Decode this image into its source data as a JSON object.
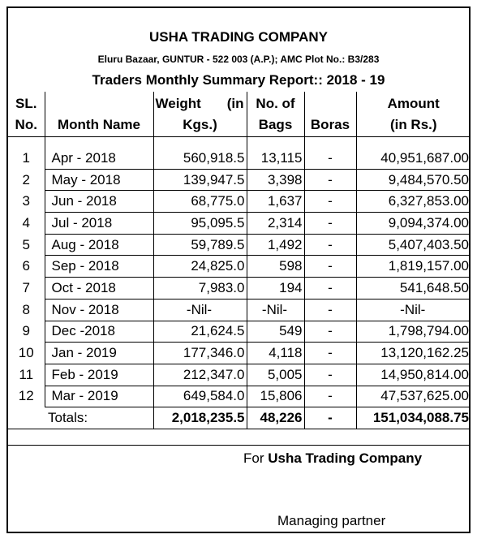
{
  "header": {
    "company": "USHA TRADING COMPANY",
    "address": "Eluru Bazaar, GUNTUR - 522 003 (A.P.); AMC Plot No.: B3/283",
    "report_title": "Traders Monthly Summary Report:: 2018 - 19"
  },
  "columns": {
    "sl_line1": "SL.",
    "sl_line2": "No.",
    "month": "Month Name",
    "weight_line1": "Weight",
    "weight_unit_left": "(in",
    "weight_line2": "Kgs.)",
    "bags_line1": "No. of",
    "bags_line2": "Bags",
    "boras": "Boras",
    "amount_line1": "Amount",
    "amount_line2": "(in Rs.)"
  },
  "rows": [
    {
      "sl": "1",
      "month": "Apr - 2018",
      "weight": "560,918.5",
      "bags": "13,115",
      "boras": "-",
      "amount": "40,951,687.00"
    },
    {
      "sl": "2",
      "month": "May - 2018",
      "weight": "139,947.5",
      "bags": "3,398",
      "boras": "-",
      "amount": "9,484,570.50"
    },
    {
      "sl": "3",
      "month": "Jun - 2018",
      "weight": "68,775.0",
      "bags": "1,637",
      "boras": "-",
      "amount": "6,327,853.00"
    },
    {
      "sl": "4",
      "month": "Jul - 2018",
      "weight": "95,095.5",
      "bags": "2,314",
      "boras": "-",
      "amount": "9,094,374.00"
    },
    {
      "sl": "5",
      "month": "Aug - 2018",
      "weight": "59,789.5",
      "bags": "1,492",
      "boras": "-",
      "amount": "5,407,403.50"
    },
    {
      "sl": "6",
      "month": "Sep - 2018",
      "weight": "24,825.0",
      "bags": "598",
      "boras": "-",
      "amount": "1,819,157.00"
    },
    {
      "sl": "7",
      "month": "Oct - 2018",
      "weight": "7,983.0",
      "bags": "194",
      "boras": "-",
      "amount": "541,648.50"
    },
    {
      "sl": "8",
      "month": "Nov - 2018",
      "weight": "-Nil-",
      "bags": "-Nil-",
      "boras": "-",
      "amount": "-Nil-"
    },
    {
      "sl": "9",
      "month": "Dec -2018",
      "weight": "21,624.5",
      "bags": "549",
      "boras": "-",
      "amount": "1,798,794.00"
    },
    {
      "sl": "10",
      "month": "Jan - 2019",
      "weight": "177,346.0",
      "bags": "4,118",
      "boras": "-",
      "amount": "13,120,162.25"
    },
    {
      "sl": "11",
      "month": "Feb - 2019",
      "weight": "212,347.0",
      "bags": "5,005",
      "boras": "-",
      "amount": "14,950,814.00"
    },
    {
      "sl": "12",
      "month": "Mar - 2019",
      "weight": "649,584.0",
      "bags": "15,806",
      "boras": "-",
      "amount": "47,537,625.00"
    }
  ],
  "totals": {
    "label": "Totals:",
    "weight": "2,018,235.5",
    "bags": "48,226",
    "boras": "-",
    "amount": "151,034,088.75"
  },
  "footer": {
    "for_prefix": "For",
    "for_company": "Usha Trading Company",
    "signatory": "Managing partner"
  }
}
